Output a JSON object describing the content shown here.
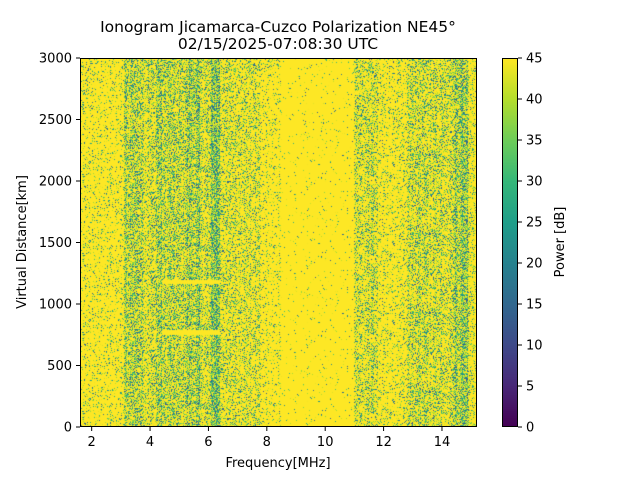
{
  "chart_data": {
    "type": "heatmap",
    "title": "Ionogram Jicamarca-Cuzco Polarization NE45°",
    "subtitle": "02/15/2025-07:08:30 UTC",
    "xlabel": "Frequency[MHz]",
    "ylabel": "Virtual Distance[km]",
    "xlim": [
      1.6,
      15.2
    ],
    "ylim": [
      0,
      3000
    ],
    "xticks": [
      2,
      4,
      6,
      8,
      10,
      12,
      14
    ],
    "yticks": [
      0,
      500,
      1000,
      1500,
      2000,
      2500,
      3000
    ],
    "colorbar": {
      "label": "Power [dB]",
      "range": [
        0,
        45
      ],
      "ticks": [
        0,
        5,
        10,
        15,
        20,
        25,
        30,
        35,
        40,
        45
      ],
      "colormap": "viridis"
    },
    "noise_bands_mhz": [
      {
        "from": 1.6,
        "to": 3.1,
        "variability": 0.15
      },
      {
        "from": 3.1,
        "to": 3.8,
        "variability": 0.6
      },
      {
        "from": 3.8,
        "to": 4.2,
        "variability": 0.4
      },
      {
        "from": 4.2,
        "to": 4.4,
        "variability": 0.65
      },
      {
        "from": 4.4,
        "to": 5.2,
        "variability": 0.5
      },
      {
        "from": 5.2,
        "to": 5.7,
        "variability": 0.7
      },
      {
        "from": 5.7,
        "to": 6.1,
        "variability": 0.4
      },
      {
        "from": 6.1,
        "to": 6.4,
        "variability": 0.9
      },
      {
        "from": 6.4,
        "to": 7.8,
        "variability": 0.35
      },
      {
        "from": 7.8,
        "to": 8.5,
        "variability": 0.15
      },
      {
        "from": 8.5,
        "to": 11.0,
        "variability": 0.03
      },
      {
        "from": 11.0,
        "to": 11.8,
        "variability": 0.4
      },
      {
        "from": 11.8,
        "to": 12.8,
        "variability": 0.2
      },
      {
        "from": 12.8,
        "to": 14.4,
        "variability": 0.45
      },
      {
        "from": 14.4,
        "to": 14.9,
        "variability": 0.75
      },
      {
        "from": 14.9,
        "to": 15.2,
        "variability": 0.3
      }
    ],
    "echo_traces": [
      {
        "distance_km": 770,
        "from_mhz": 4.4,
        "to_mhz": 6.4
      },
      {
        "distance_km": 1180,
        "from_mhz": 4.4,
        "to_mhz": 6.4
      }
    ]
  }
}
